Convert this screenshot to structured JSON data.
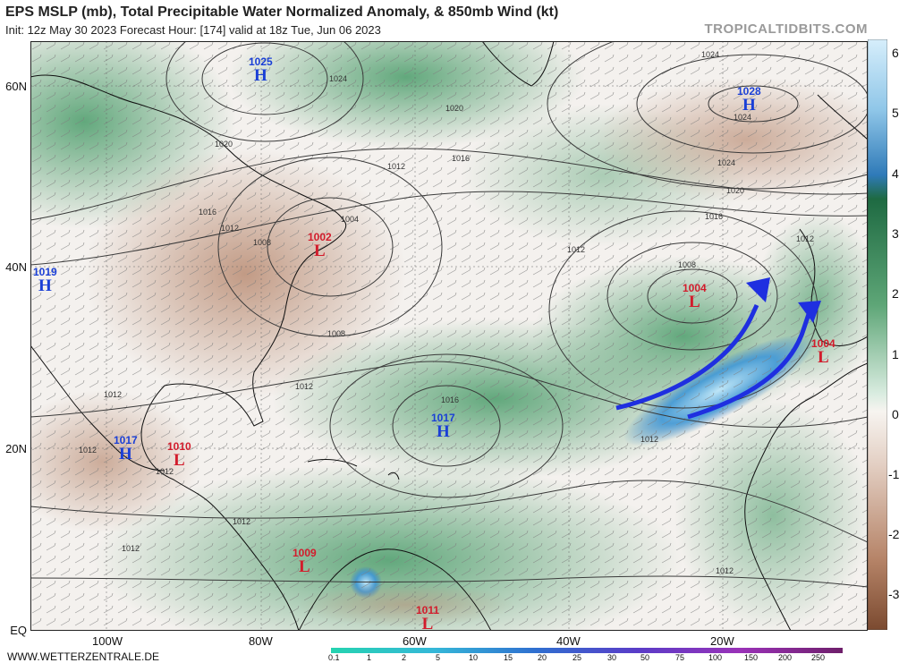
{
  "header": {
    "title": "EPS MSLP (mb), Total Precipitable Water Normalized Anomaly, & 850mb Wind (kt)",
    "subtitle": "Init: 12z May 30 2023   Forecast Hour: [174]   valid at 18z Tue, Jun 06 2023",
    "credit": "TROPICALTIDBITS.COM"
  },
  "footer": {
    "source": "WWW.WETTERZENTRALE.DE"
  },
  "axes": {
    "lat_labels": [
      "60N",
      "40N",
      "20N",
      "EQ"
    ],
    "lon_labels": [
      "100W",
      "80W",
      "60W",
      "40W",
      "20W"
    ]
  },
  "anomaly_colorbar": {
    "labels": [
      "6",
      "5",
      "4",
      "3",
      "2",
      "1",
      "0",
      "-1",
      "-2",
      "-3"
    ]
  },
  "wind_colorbar": {
    "labels": [
      "0.1",
      "1",
      "2",
      "5",
      "10",
      "15",
      "20",
      "25",
      "30",
      "50",
      "75",
      "100",
      "150",
      "200",
      "250"
    ]
  },
  "pressure_centers": [
    {
      "id": "hi-1025",
      "type": "H",
      "value": "1025"
    },
    {
      "id": "hi-1028",
      "type": "H",
      "value": "1028"
    },
    {
      "id": "hi-1019",
      "type": "H",
      "value": "1019"
    },
    {
      "id": "lo-1002",
      "type": "L",
      "value": "1002"
    },
    {
      "id": "lo-1004-atl",
      "type": "L",
      "value": "1004"
    },
    {
      "id": "lo-1004-ib",
      "type": "L",
      "value": "1004"
    },
    {
      "id": "hi-1017-atl",
      "type": "H",
      "value": "1017"
    },
    {
      "id": "hi-1017-mex",
      "type": "H",
      "value": "1017"
    },
    {
      "id": "lo-1010",
      "type": "L",
      "value": "1010"
    },
    {
      "id": "lo-1009",
      "type": "L",
      "value": "1009"
    },
    {
      "id": "lo-1011",
      "type": "L",
      "value": "1011"
    }
  ],
  "isobar_labels": [
    {
      "id": "i1",
      "text": "1024"
    },
    {
      "id": "i2",
      "text": "1024"
    },
    {
      "id": "i3",
      "text": "1020"
    },
    {
      "id": "i4",
      "text": "1016"
    },
    {
      "id": "i5",
      "text": "1012"
    },
    {
      "id": "i6",
      "text": "1020"
    },
    {
      "id": "i7",
      "text": "1016"
    },
    {
      "id": "i8",
      "text": "1012"
    },
    {
      "id": "i9",
      "text": "1008"
    },
    {
      "id": "i10",
      "text": "1004"
    },
    {
      "id": "i11",
      "text": "1012"
    },
    {
      "id": "i12",
      "text": "1008"
    },
    {
      "id": "i13",
      "text": "1012"
    },
    {
      "id": "i14",
      "text": "1016"
    },
    {
      "id": "i15",
      "text": "1024"
    },
    {
      "id": "i16",
      "text": "1028"
    },
    {
      "id": "i17",
      "text": "1024"
    },
    {
      "id": "i18",
      "text": "1020"
    },
    {
      "id": "i19",
      "text": "1016"
    },
    {
      "id": "i20",
      "text": "1012"
    },
    {
      "id": "i21",
      "text": "1008"
    },
    {
      "id": "i22",
      "text": "1012"
    },
    {
      "id": "i23",
      "text": "1012"
    },
    {
      "id": "i24",
      "text": "1012"
    },
    {
      "id": "i25",
      "text": "1012"
    },
    {
      "id": "i26",
      "text": "1012"
    },
    {
      "id": "i27",
      "text": "1012"
    },
    {
      "id": "i28",
      "text": "1012"
    }
  ],
  "colors": {
    "high": "#1a3fd6",
    "low": "#d21c2c",
    "arrow": "#1f2fe0",
    "positive_anomaly": "#3f8a5a",
    "negative_anomaly": "#a06a4e",
    "extreme_anomaly": "#4aa3d8"
  }
}
